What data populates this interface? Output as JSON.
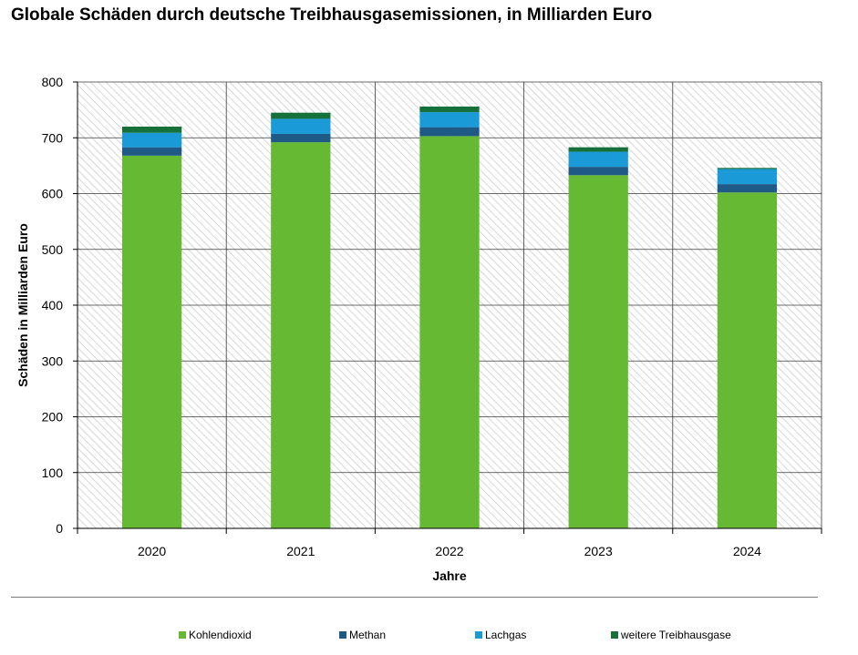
{
  "title": "Globale Schäden durch deutsche Treibhausgasemissionen, in Milliarden Euro",
  "chart_data": {
    "type": "bar",
    "stacked": true,
    "title": "Globale Schäden durch deutsche Treibhausgasemissionen, in Milliarden Euro",
    "xlabel": "Jahre",
    "ylabel": "Schäden in Milliarden Euro",
    "ylim": [
      0,
      800
    ],
    "yticks": [
      0,
      100,
      200,
      300,
      400,
      500,
      600,
      700,
      800
    ],
    "grid": true,
    "legend_position": "bottom",
    "categories": [
      "2020",
      "2021",
      "2022",
      "2023",
      "2024"
    ],
    "series": [
      {
        "name": "Kohlendioxid",
        "color": "#66b933",
        "values": [
          668,
          692,
          703,
          633,
          602
        ]
      },
      {
        "name": "Methan",
        "color": "#1f5a87",
        "values": [
          15,
          15,
          16,
          15,
          15
        ]
      },
      {
        "name": "Lachgas",
        "color": "#1a9bd7",
        "values": [
          26,
          27,
          27,
          27,
          27
        ]
      },
      {
        "name": "weitere Treibhausgase",
        "color": "#15703a",
        "values": [
          11,
          11,
          10,
          8,
          2
        ]
      }
    ]
  }
}
